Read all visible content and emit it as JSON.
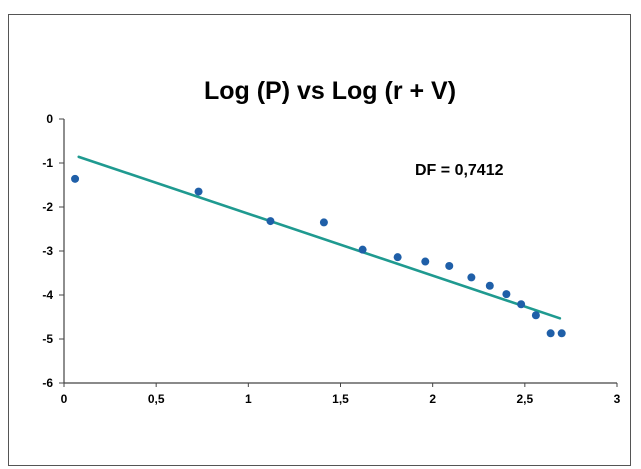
{
  "chart_data": {
    "type": "scatter",
    "title": "Log (P) vs Log (r + V)",
    "xlabel": "",
    "ylabel": "",
    "xlim": [
      0,
      3
    ],
    "ylim": [
      -6,
      0
    ],
    "x_ticks": [
      "0",
      "0,5",
      "1",
      "1,5",
      "2",
      "2,5",
      "3"
    ],
    "y_ticks": [
      "0",
      "-1",
      "-2",
      "-3",
      "-4",
      "-5",
      "-6"
    ],
    "annotation": "DF = 0,7412",
    "grid": false,
    "legend": "none",
    "colors": {
      "points": "#1f5fa8",
      "trendline": "#1f9a90",
      "axis": "#444444"
    },
    "points": [
      {
        "x": 0.06,
        "y": -1.36
      },
      {
        "x": 0.73,
        "y": -1.65
      },
      {
        "x": 1.12,
        "y": -2.32
      },
      {
        "x": 1.41,
        "y": -2.35
      },
      {
        "x": 1.62,
        "y": -2.97
      },
      {
        "x": 1.81,
        "y": -3.14
      },
      {
        "x": 1.96,
        "y": -3.24
      },
      {
        "x": 2.09,
        "y": -3.34
      },
      {
        "x": 2.21,
        "y": -3.6
      },
      {
        "x": 2.31,
        "y": -3.79
      },
      {
        "x": 2.4,
        "y": -3.98
      },
      {
        "x": 2.48,
        "y": -4.21
      },
      {
        "x": 2.56,
        "y": -4.46
      },
      {
        "x": 2.64,
        "y": -4.87
      },
      {
        "x": 2.7,
        "y": -4.87
      }
    ],
    "trendline": {
      "x": [
        0.08,
        2.69
      ],
      "y": [
        -0.86,
        -4.53
      ]
    }
  }
}
